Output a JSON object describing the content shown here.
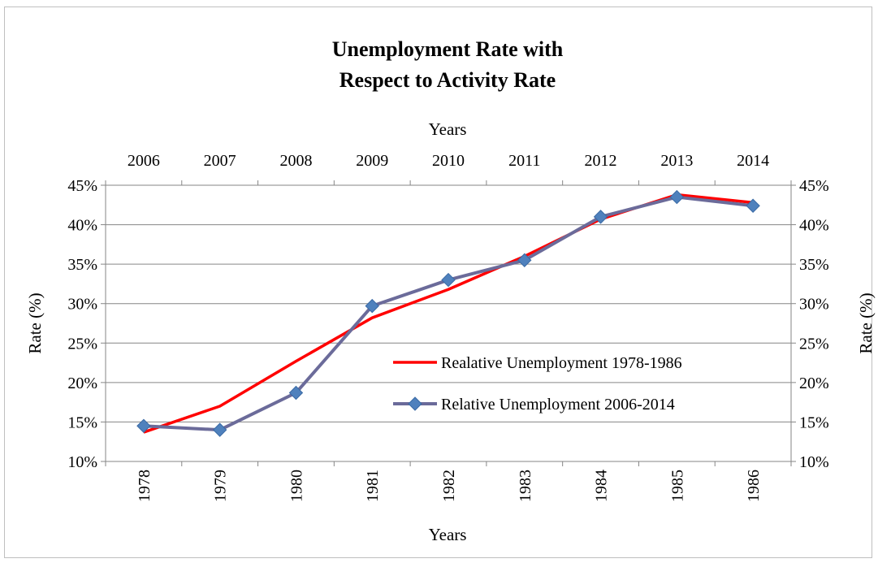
{
  "chart_data": {
    "type": "line",
    "title_lines": [
      "Unemployment Rate with",
      "Respect to Activity Rate"
    ],
    "xlabel_bottom": "Years",
    "xlabel_top": "Years",
    "ylabel_left": "Rate (%)",
    "ylabel_right": "Rate (%)",
    "x_bottom": [
      "1978",
      "1979",
      "1980",
      "1981",
      "1982",
      "1983",
      "1984",
      "1985",
      "1986"
    ],
    "x_top": [
      "2006",
      "2007",
      "2008",
      "2009",
      "2010",
      "2011",
      "2012",
      "2013",
      "2014"
    ],
    "ylim": [
      0.1,
      0.45
    ],
    "yticks": [
      "10%",
      "15%",
      "20%",
      "25%",
      "30%",
      "35%",
      "40%",
      "45%"
    ],
    "grid": true,
    "legend_position": "center-right",
    "series": [
      {
        "name": "Realative Unemployment 1978-1986",
        "axis": "bottom-left",
        "color": "#ff0000",
        "marker": "none",
        "values": [
          0.137,
          0.17,
          0.227,
          0.282,
          0.318,
          0.36,
          0.407,
          0.438,
          0.428
        ]
      },
      {
        "name": "Relative Unemployment 2006-2014",
        "axis": "top-right",
        "color": "#6b6b9a",
        "marker": "diamond",
        "marker_color": "#4f81bd",
        "values": [
          0.145,
          0.14,
          0.187,
          0.297,
          0.33,
          0.355,
          0.41,
          0.435,
          0.424
        ]
      }
    ]
  }
}
